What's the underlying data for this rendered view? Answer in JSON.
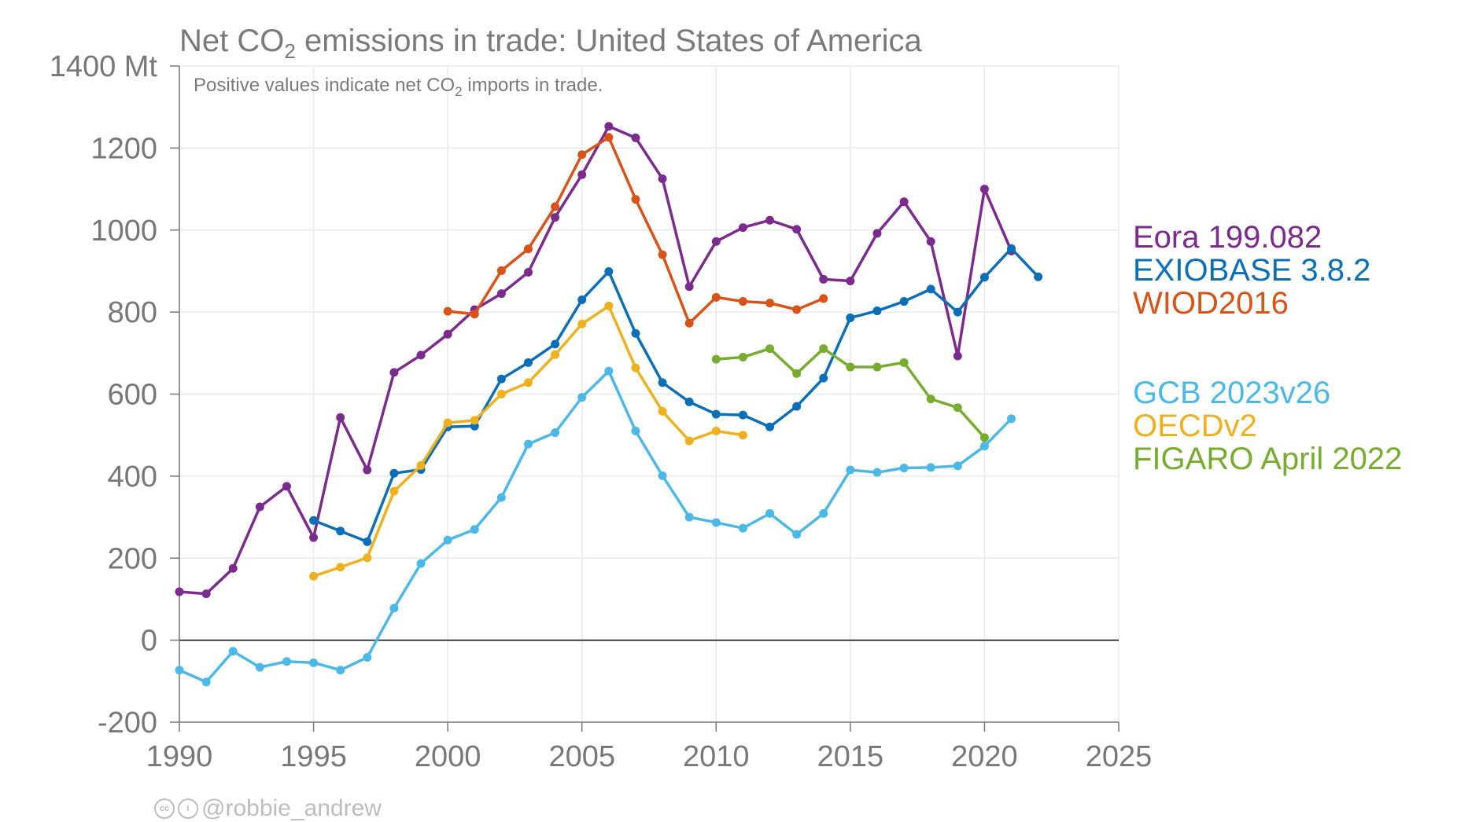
{
  "chart_data": {
    "type": "line",
    "title_prefix": "Net CO",
    "title_sub": "2",
    "title_suffix": " emissions in trade: United States of America",
    "subtitle_prefix": "Positive values indicate net CO",
    "subtitle_sub": "2",
    "subtitle_suffix": " imports in trade.",
    "xlim": [
      1990,
      2025
    ],
    "ylim": [
      -200,
      1400
    ],
    "x_ticks": [
      1990,
      1995,
      2000,
      2005,
      2010,
      2015,
      2020,
      2025
    ],
    "y_ticks": [
      -200,
      0,
      200,
      400,
      600,
      800,
      1000,
      1200,
      1400
    ],
    "y_tick_labels": [
      "-200",
      "0",
      "200",
      "400",
      "600",
      "800",
      "1000",
      "1200",
      "1400 Mt"
    ],
    "grid": true,
    "legend_position": "right",
    "series": [
      {
        "name": "Eora 199.082",
        "color": "#7b2a8e",
        "x": [
          1990,
          1991,
          1992,
          1993,
          1994,
          1995,
          1996,
          1997,
          1998,
          1999,
          2000,
          2001,
          2002,
          2003,
          2004,
          2005,
          2006,
          2007,
          2008,
          2009,
          2010,
          2011,
          2012,
          2013,
          2014,
          2015,
          2016,
          2017,
          2018,
          2019,
          2020,
          2021
        ],
        "values": [
          118,
          113,
          175,
          325,
          375,
          250,
          543,
          415,
          653,
          695,
          746,
          806,
          845,
          897,
          1031,
          1135,
          1253,
          1225,
          1125,
          862,
          972,
          1006,
          1024,
          1002,
          880,
          876,
          992,
          1069,
          972,
          693,
          1100,
          949
        ]
      },
      {
        "name": "EXIOBASE 3.8.2",
        "color": "#0b6fb8",
        "x": [
          1995,
          1996,
          1997,
          1998,
          1999,
          2000,
          2001,
          2002,
          2003,
          2004,
          2005,
          2006,
          2007,
          2008,
          2009,
          2010,
          2011,
          2012,
          2013,
          2014,
          2015,
          2016,
          2017,
          2018,
          2019,
          2020,
          2021,
          2022
        ],
        "values": [
          292,
          266,
          240,
          407,
          416,
          520,
          522,
          637,
          677,
          722,
          830,
          899,
          748,
          628,
          581,
          551,
          549,
          520,
          570,
          639,
          786,
          803,
          826,
          856,
          800,
          885,
          955,
          886
        ]
      },
      {
        "name": "WIOD2016",
        "color": "#d95319",
        "x": [
          2000,
          2001,
          2002,
          2003,
          2004,
          2005,
          2006,
          2007,
          2008,
          2009,
          2010,
          2011,
          2012,
          2013,
          2014
        ],
        "values": [
          802,
          795,
          901,
          954,
          1057,
          1184,
          1226,
          1075,
          940,
          773,
          836,
          826,
          822,
          806,
          833
        ]
      },
      {
        "name": "GCB 2023v26",
        "color": "#4cb8e8",
        "x": [
          1990,
          1991,
          1992,
          1993,
          1994,
          1995,
          1996,
          1997,
          1998,
          1999,
          2000,
          2001,
          2002,
          2003,
          2004,
          2005,
          2006,
          2007,
          2008,
          2009,
          2010,
          2011,
          2012,
          2013,
          2014,
          2015,
          2016,
          2017,
          2018,
          2019,
          2020,
          2021
        ],
        "values": [
          -73,
          -102,
          -27,
          -66,
          -52,
          -55,
          -73,
          -42,
          78,
          187,
          244,
          270,
          348,
          478,
          506,
          592,
          656,
          510,
          401,
          300,
          287,
          273,
          309,
          258,
          309,
          415,
          409,
          420,
          421,
          425,
          473,
          540
        ]
      },
      {
        "name": "OECDv2",
        "color": "#edb120",
        "x": [
          1995,
          1996,
          1997,
          1998,
          1999,
          2000,
          2001,
          2002,
          2003,
          2004,
          2005,
          2006,
          2007,
          2008,
          2009,
          2010,
          2011
        ],
        "values": [
          156,
          178,
          201,
          363,
          426,
          530,
          536,
          600,
          628,
          696,
          771,
          815,
          664,
          558,
          486,
          510,
          500
        ]
      },
      {
        "name": "FIGARO April 2022",
        "color": "#77ac30",
        "x": [
          2010,
          2011,
          2012,
          2013,
          2014,
          2015,
          2016,
          2017,
          2018,
          2019,
          2020
        ],
        "values": [
          685,
          690,
          711,
          650,
          711,
          666,
          666,
          677,
          588,
          567,
          494
        ]
      }
    ]
  },
  "credit": {
    "cc_icon": "cc-icon",
    "by_icon": "attribution-icon",
    "handle": "@robbie_andrew"
  }
}
